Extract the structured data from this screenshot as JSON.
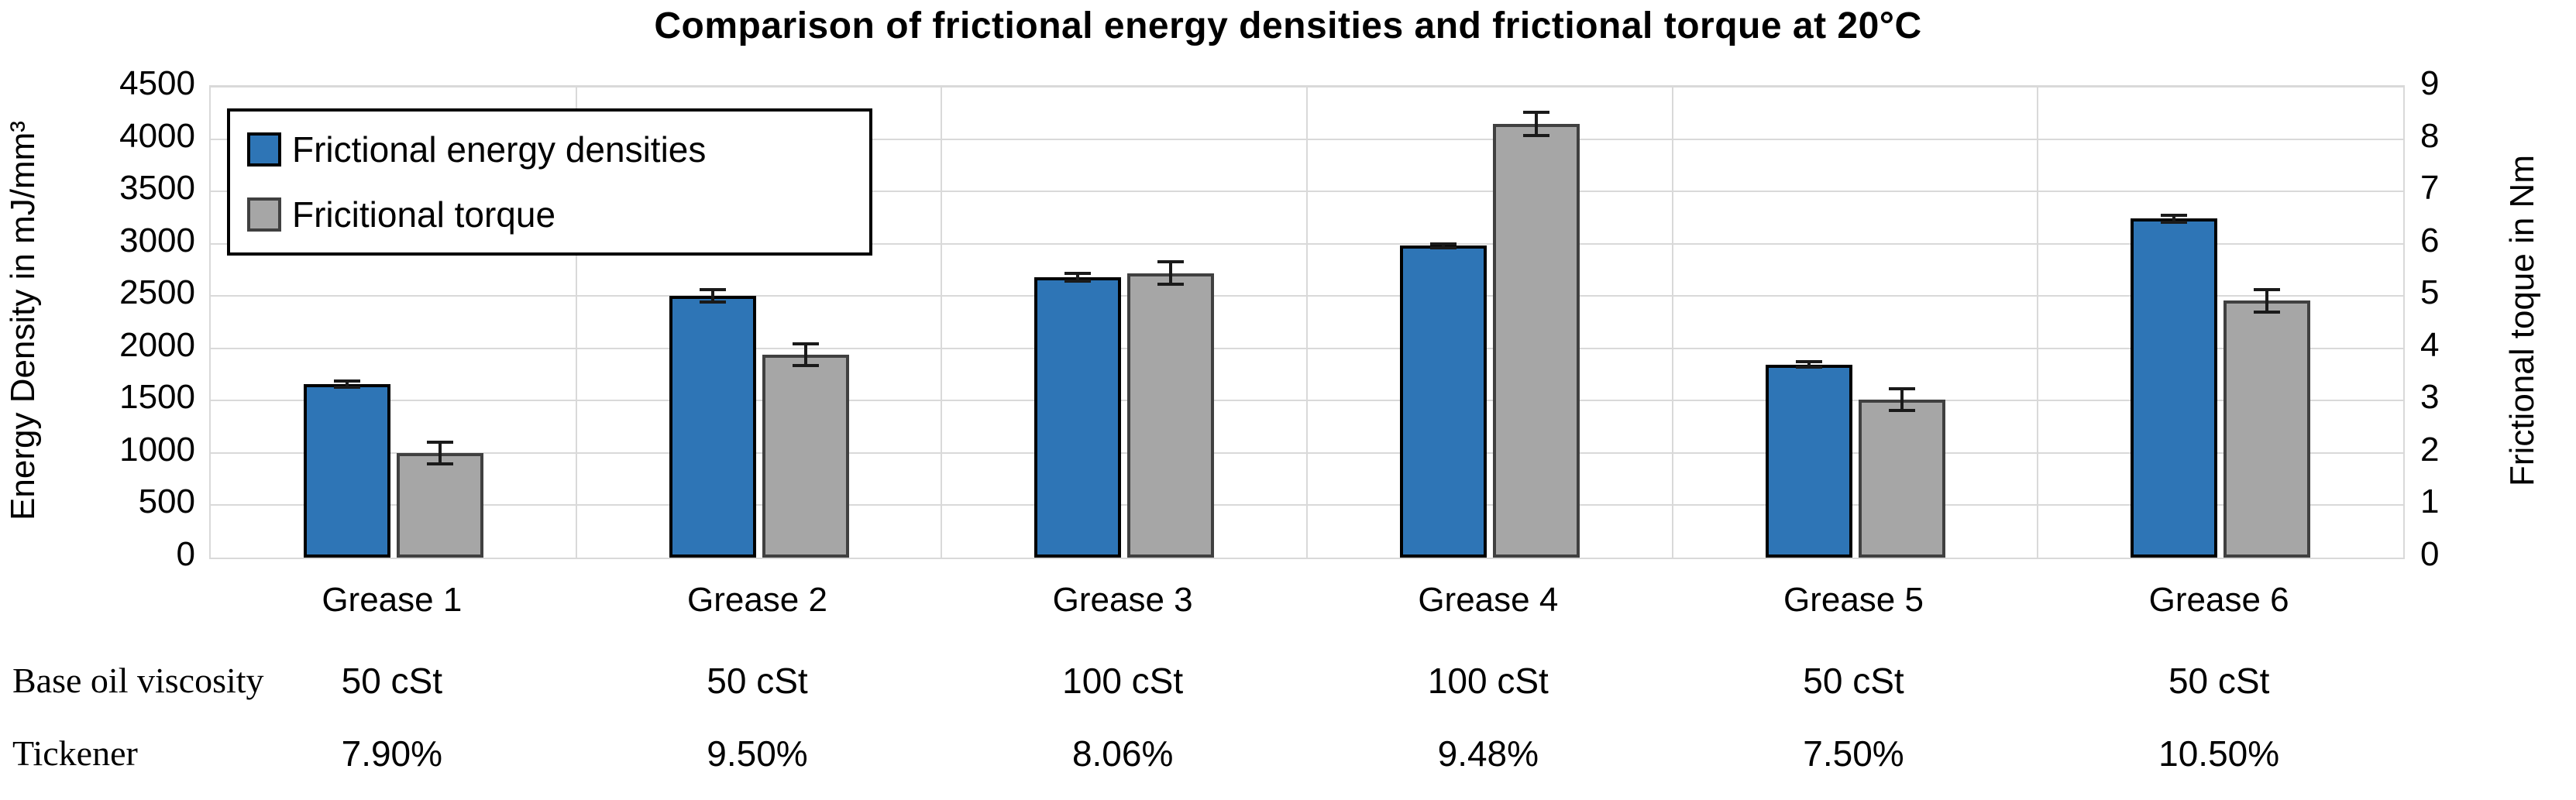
{
  "title": "Comparison of frictional energy densities and frictional torque at 20°C",
  "chart_data": {
    "type": "bar",
    "categories": [
      "Grease 1",
      "Grease 2",
      "Grease 3",
      "Grease 4",
      "Grease 5",
      "Grease 6"
    ],
    "series": [
      {
        "name": "Frictional energy densities",
        "axis": "left",
        "color": "#2E75B6",
        "border_color": "#000000",
        "values": [
          1660,
          2500,
          2680,
          2980,
          1845,
          3240
        ],
        "errors": [
          30,
          60,
          35,
          20,
          25,
          35
        ]
      },
      {
        "name": "Fricitional torque",
        "axis": "right",
        "color": "#A6A6A6",
        "border_color": "#404040",
        "values": [
          2.0,
          3.88,
          5.44,
          8.29,
          3.02,
          4.91
        ],
        "errors": [
          0.21,
          0.21,
          0.22,
          0.22,
          0.21,
          0.21
        ]
      }
    ],
    "left_axis": {
      "label": "Energy Density in mJ/mm³",
      "min": 0,
      "max": 4500,
      "step": 500
    },
    "right_axis": {
      "label": "Frictional toque in Nm",
      "min": 0,
      "max": 9,
      "step": 1
    },
    "grid": true,
    "legend_position": "top-left"
  },
  "table": {
    "rows": [
      {
        "label": "Base oil viscosity",
        "values": [
          "50 cSt",
          "50 cSt",
          "100 cSt",
          "100 cSt",
          "50 cSt",
          "50 cSt"
        ]
      },
      {
        "label": "Tickener",
        "values": [
          "7.90%",
          "9.50%",
          "8.06%",
          "9.48%",
          "7.50%",
          "10.50%"
        ]
      }
    ]
  },
  "colors": {
    "gridline": "#d9d9d9",
    "error_bar": "#1a1a1a",
    "text": "#000000",
    "background": "#ffffff"
  }
}
